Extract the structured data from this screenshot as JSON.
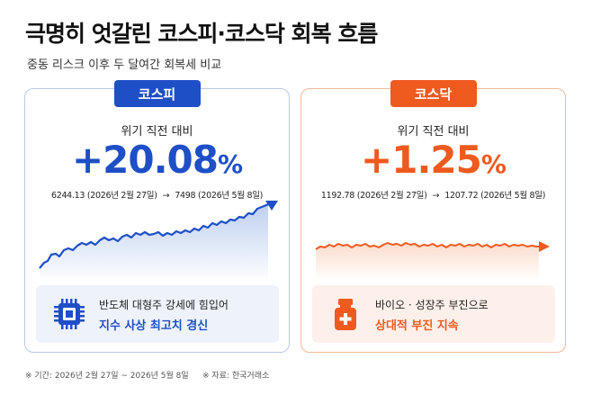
{
  "title": "극명히 엇갈린 코스피·코스닥 회복 흐름",
  "subtitle": "중동 리스크 이후 두 달여간 회복세 비교",
  "colors": {
    "kospi": "#1e4fc6",
    "kosdaq": "#ef5a1e"
  },
  "kospi": {
    "badge": "코스피",
    "label": "위기 직전 대비",
    "pct_value": "+20.08",
    "pct_unit": "%",
    "start": "6244.13 (2026년 2월 27일)",
    "arrow": "→",
    "end": "7498 (2026년 5월 8일)",
    "icon": "chip-icon",
    "info_line1": "반도체 대형주 강세에 힘입어",
    "info_line2": "지수 사상 최고치 경신"
  },
  "kosdaq": {
    "badge": "코스닥",
    "label": "위기 직전 대비",
    "pct_value": "+1.25",
    "pct_unit": "%",
    "start": "1192.78 (2026년 2월 27일)",
    "arrow": "→",
    "end": "1207.72 (2026년 5월 8일)",
    "icon": "medicine-bottle-icon",
    "info_line1": "바이오 · 성장주 부진으로",
    "info_line2": "상대적 부진 지속"
  },
  "footer_period": "※ 기간: 2026년 2월 27일 ~ 2026년 5월 8일",
  "footer_source": "※ 자료: 한국거래소"
}
